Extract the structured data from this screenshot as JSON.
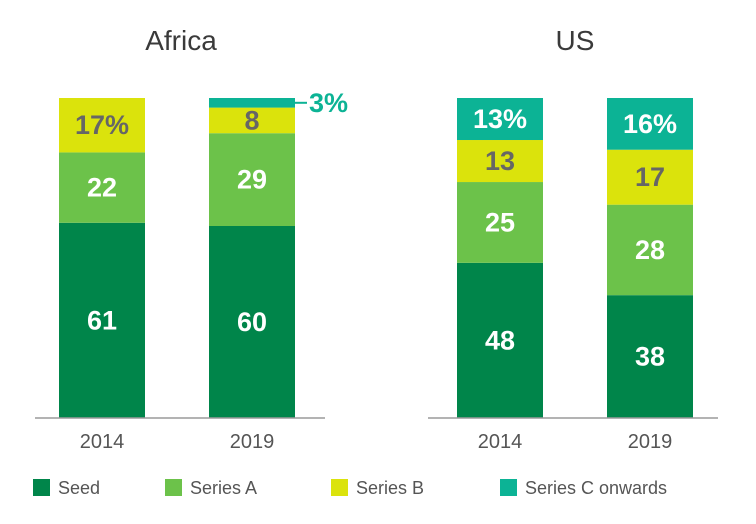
{
  "chart_data": [
    {
      "type": "bar",
      "stacked": true,
      "unit": "%",
      "title": "Africa",
      "categories": [
        "2014",
        "2019"
      ],
      "series": [
        {
          "name": "Seed",
          "values": [
            61,
            60
          ],
          "labels": [
            "61",
            "60"
          ]
        },
        {
          "name": "Series A",
          "values": [
            22,
            29
          ],
          "labels": [
            "22",
            "29"
          ]
        },
        {
          "name": "Series B",
          "values": [
            17,
            8
          ],
          "labels": [
            "17%",
            "8"
          ]
        },
        {
          "name": "Series C onwards",
          "values": [
            0,
            3
          ],
          "labels": [
            "",
            "3%"
          ]
        }
      ]
    },
    {
      "type": "bar",
      "stacked": true,
      "unit": "%",
      "title": "US",
      "categories": [
        "2014",
        "2019"
      ],
      "series": [
        {
          "name": "Seed",
          "values": [
            48,
            38
          ],
          "labels": [
            "48",
            "38"
          ]
        },
        {
          "name": "Series A",
          "values": [
            25,
            28
          ],
          "labels": [
            "25",
            "28"
          ]
        },
        {
          "name": "Series B",
          "values": [
            13,
            17
          ],
          "labels": [
            "13",
            "17"
          ]
        },
        {
          "name": "Series C onwards",
          "values": [
            13,
            16
          ],
          "labels": [
            "13%",
            "16%"
          ]
        }
      ]
    }
  ],
  "legend": [
    {
      "name": "Seed",
      "color": "#00854a"
    },
    {
      "name": "Series A",
      "color": "#6cc24a"
    },
    {
      "name": "Series B",
      "color": "#dbe30c"
    },
    {
      "name": "Series C onwards",
      "color": "#0cb395"
    }
  ],
  "label_colors": {
    "Seed": "#ffffff",
    "Series A": "#ffffff",
    "Series B": "#666666",
    "Series C onwards": "#ffffff",
    "callout": "#0cb395"
  }
}
